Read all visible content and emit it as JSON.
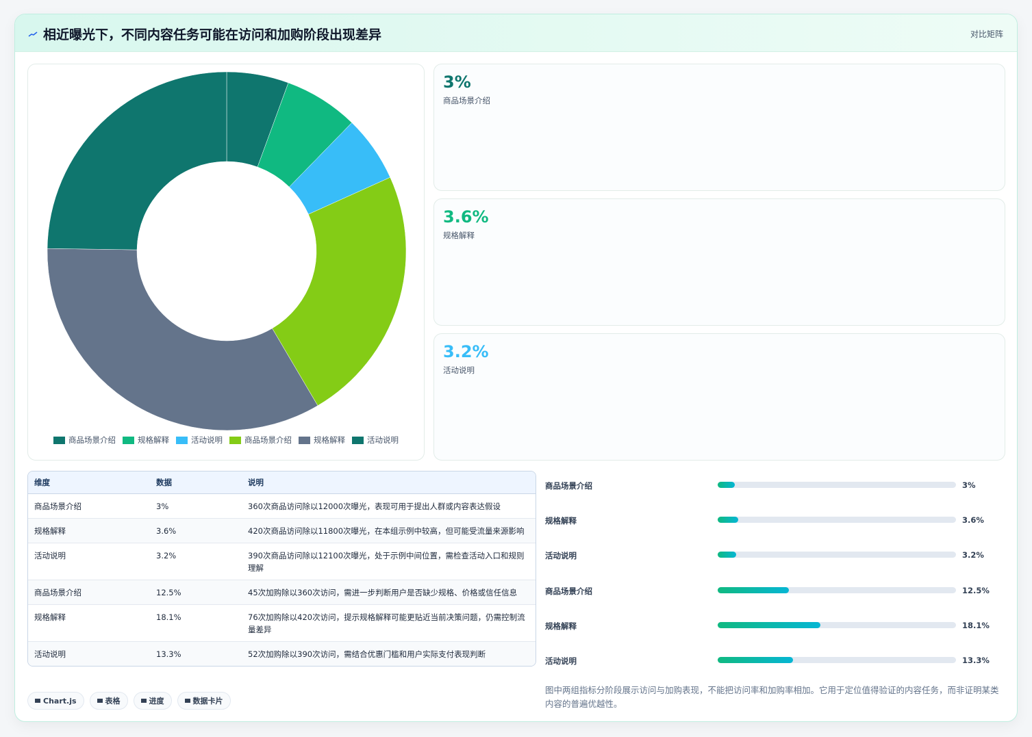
{
  "header": {
    "title": "相近曝光下，不同内容任务可能在访问和加购阶段出现差异",
    "action": "对比矩阵"
  },
  "chart_data": {
    "type": "doughnut",
    "categories": [
      "商品场景介绍",
      "规格解释",
      "活动说明",
      "商品场景介绍",
      "规格解释",
      "活动说明"
    ],
    "values": [
      3,
      3.6,
      3.2,
      12.5,
      18.1,
      13.3
    ],
    "colors": [
      "#0f766e",
      "#10b981",
      "#38bdf8",
      "#84cc16",
      "#64748b",
      "#0f766e"
    ]
  },
  "kpis": [
    {
      "value": "3%",
      "name": "商品场景介绍",
      "color": "#0f766e"
    },
    {
      "value": "3.6%",
      "name": "规格解释",
      "color": "#10b981"
    },
    {
      "value": "3.2%",
      "name": "活动说明",
      "color": "#38bdf8"
    }
  ],
  "table": {
    "columns": [
      "维度",
      "数据",
      "说明"
    ],
    "rows": [
      [
        "商品场景介绍",
        "3%",
        "360次商品访问除以12000次曝光，表现可用于提出人群或内容表达假设"
      ],
      [
        "规格解释",
        "3.6%",
        "420次商品访问除以11800次曝光，在本组示例中较高，但可能受流量来源影响"
      ],
      [
        "活动说明",
        "3.2%",
        "390次商品访问除以12100次曝光，处于示例中间位置，需检查活动入口和规则理解"
      ],
      [
        "商品场景介绍",
        "12.5%",
        "45次加购除以360次访问，需进一步判断用户是否缺少规格、价格或信任信息"
      ],
      [
        "规格解释",
        "18.1%",
        "76次加购除以420次访问，提示规格解释可能更贴近当前决策问题，仍需控制流量差异"
      ],
      [
        "活动说明",
        "13.3%",
        "52次加购除以390次访问，需结合优惠门槛和用户实际支付表现判断"
      ]
    ]
  },
  "progress": {
    "categories": [
      "商品场景介绍",
      "规格解释",
      "活动说明",
      "商品场景介绍",
      "规格解释",
      "活动说明"
    ],
    "values": [
      3,
      3.6,
      3.2,
      12.5,
      18.1,
      13.3
    ],
    "value_labels": [
      "3%",
      "3.6%",
      "3.2%",
      "12.5%",
      "18.1%",
      "13.3%"
    ],
    "xlim": [
      0,
      42
    ]
  },
  "note": "图中两组指标分阶段展示访问与加购表现，不能把访问率和加购率相加。它用于定位值得验证的内容任务，而非证明某类内容的普遍优越性。",
  "chips": [
    "Chart.js",
    "表格",
    "进度",
    "数据卡片"
  ]
}
